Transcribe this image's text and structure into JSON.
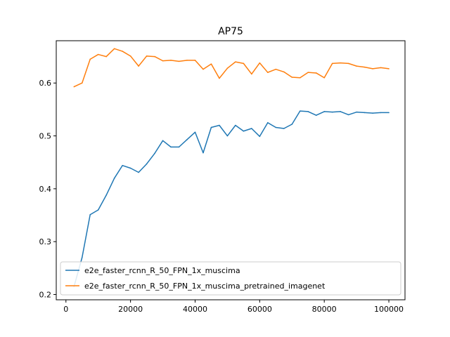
{
  "chart_data": {
    "type": "line",
    "title": "AP75",
    "xlabel": "",
    "ylabel": "",
    "xlim": [
      -3000,
      105000
    ],
    "ylim": [
      0.19,
      0.68
    ],
    "xticks": [
      0,
      20000,
      40000,
      60000,
      80000,
      100000
    ],
    "xtick_labels": [
      "0",
      "20000",
      "40000",
      "60000",
      "80000",
      "100000"
    ],
    "yticks": [
      0.2,
      0.3,
      0.4,
      0.5,
      0.6
    ],
    "ytick_labels": [
      "0.2",
      "0.3",
      "0.4",
      "0.5",
      "0.6"
    ],
    "grid": false,
    "legend_position": "lower-left",
    "series": [
      {
        "name": "e2e_faster_rcnn_R_50_FPN_1x_muscima",
        "color": "#1f77b4",
        "x": [
          2500,
          5000,
          7500,
          10000,
          12500,
          15000,
          17500,
          20000,
          22500,
          25000,
          27500,
          30000,
          32500,
          35000,
          37500,
          40000,
          42500,
          45000,
          47500,
          50000,
          52500,
          55000,
          57500,
          60000,
          62500,
          65000,
          67500,
          70000,
          72500,
          75000,
          77500,
          80000,
          82500,
          85000,
          87500,
          90000,
          92500,
          95000,
          97500,
          100000
        ],
        "values": [
          0.215,
          0.27,
          0.351,
          0.36,
          0.388,
          0.42,
          0.444,
          0.439,
          0.431,
          0.447,
          0.467,
          0.491,
          0.479,
          0.479,
          0.493,
          0.507,
          0.468,
          0.516,
          0.52,
          0.5,
          0.52,
          0.509,
          0.514,
          0.499,
          0.525,
          0.516,
          0.514,
          0.522,
          0.547,
          0.546,
          0.539,
          0.546,
          0.545,
          0.546,
          0.54,
          0.545,
          0.544,
          0.543,
          0.544,
          0.544
        ]
      },
      {
        "name": "e2e_faster_rcnn_R_50_FPN_1x_muscima_pretrained_imagenet",
        "color": "#ff7f0e",
        "x": [
          2500,
          5000,
          7500,
          10000,
          12500,
          15000,
          17500,
          20000,
          22500,
          25000,
          27500,
          30000,
          32500,
          35000,
          37500,
          40000,
          42500,
          45000,
          47500,
          50000,
          52500,
          55000,
          57500,
          60000,
          62500,
          65000,
          67500,
          70000,
          72500,
          75000,
          77500,
          80000,
          82500,
          85000,
          87500,
          90000,
          92500,
          95000,
          97500,
          100000
        ],
        "values": [
          0.593,
          0.6,
          0.645,
          0.654,
          0.65,
          0.665,
          0.66,
          0.651,
          0.632,
          0.651,
          0.65,
          0.642,
          0.643,
          0.641,
          0.643,
          0.643,
          0.626,
          0.636,
          0.609,
          0.628,
          0.64,
          0.637,
          0.617,
          0.638,
          0.62,
          0.626,
          0.621,
          0.611,
          0.61,
          0.62,
          0.619,
          0.61,
          0.637,
          0.638,
          0.637,
          0.632,
          0.63,
          0.627,
          0.629,
          0.627
        ]
      }
    ]
  }
}
